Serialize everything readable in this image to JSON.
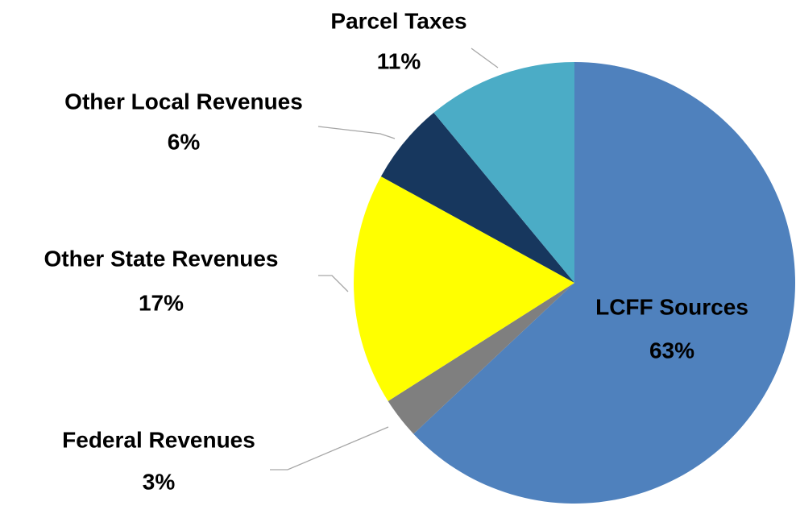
{
  "chart_data": {
    "type": "pie",
    "categories": [
      "LCFF Sources",
      "Federal Revenues",
      "Other State Revenues",
      "Other Local Revenues",
      "Parcel Taxes"
    ],
    "values": [
      63,
      3,
      17,
      6,
      11
    ],
    "value_labels": [
      "63%",
      "3%",
      "17%",
      "6%",
      "11%"
    ],
    "colors": [
      "#4f81bd",
      "#7f7f7f",
      "#ffff00",
      "#17375e",
      "#4bacc6"
    ]
  }
}
